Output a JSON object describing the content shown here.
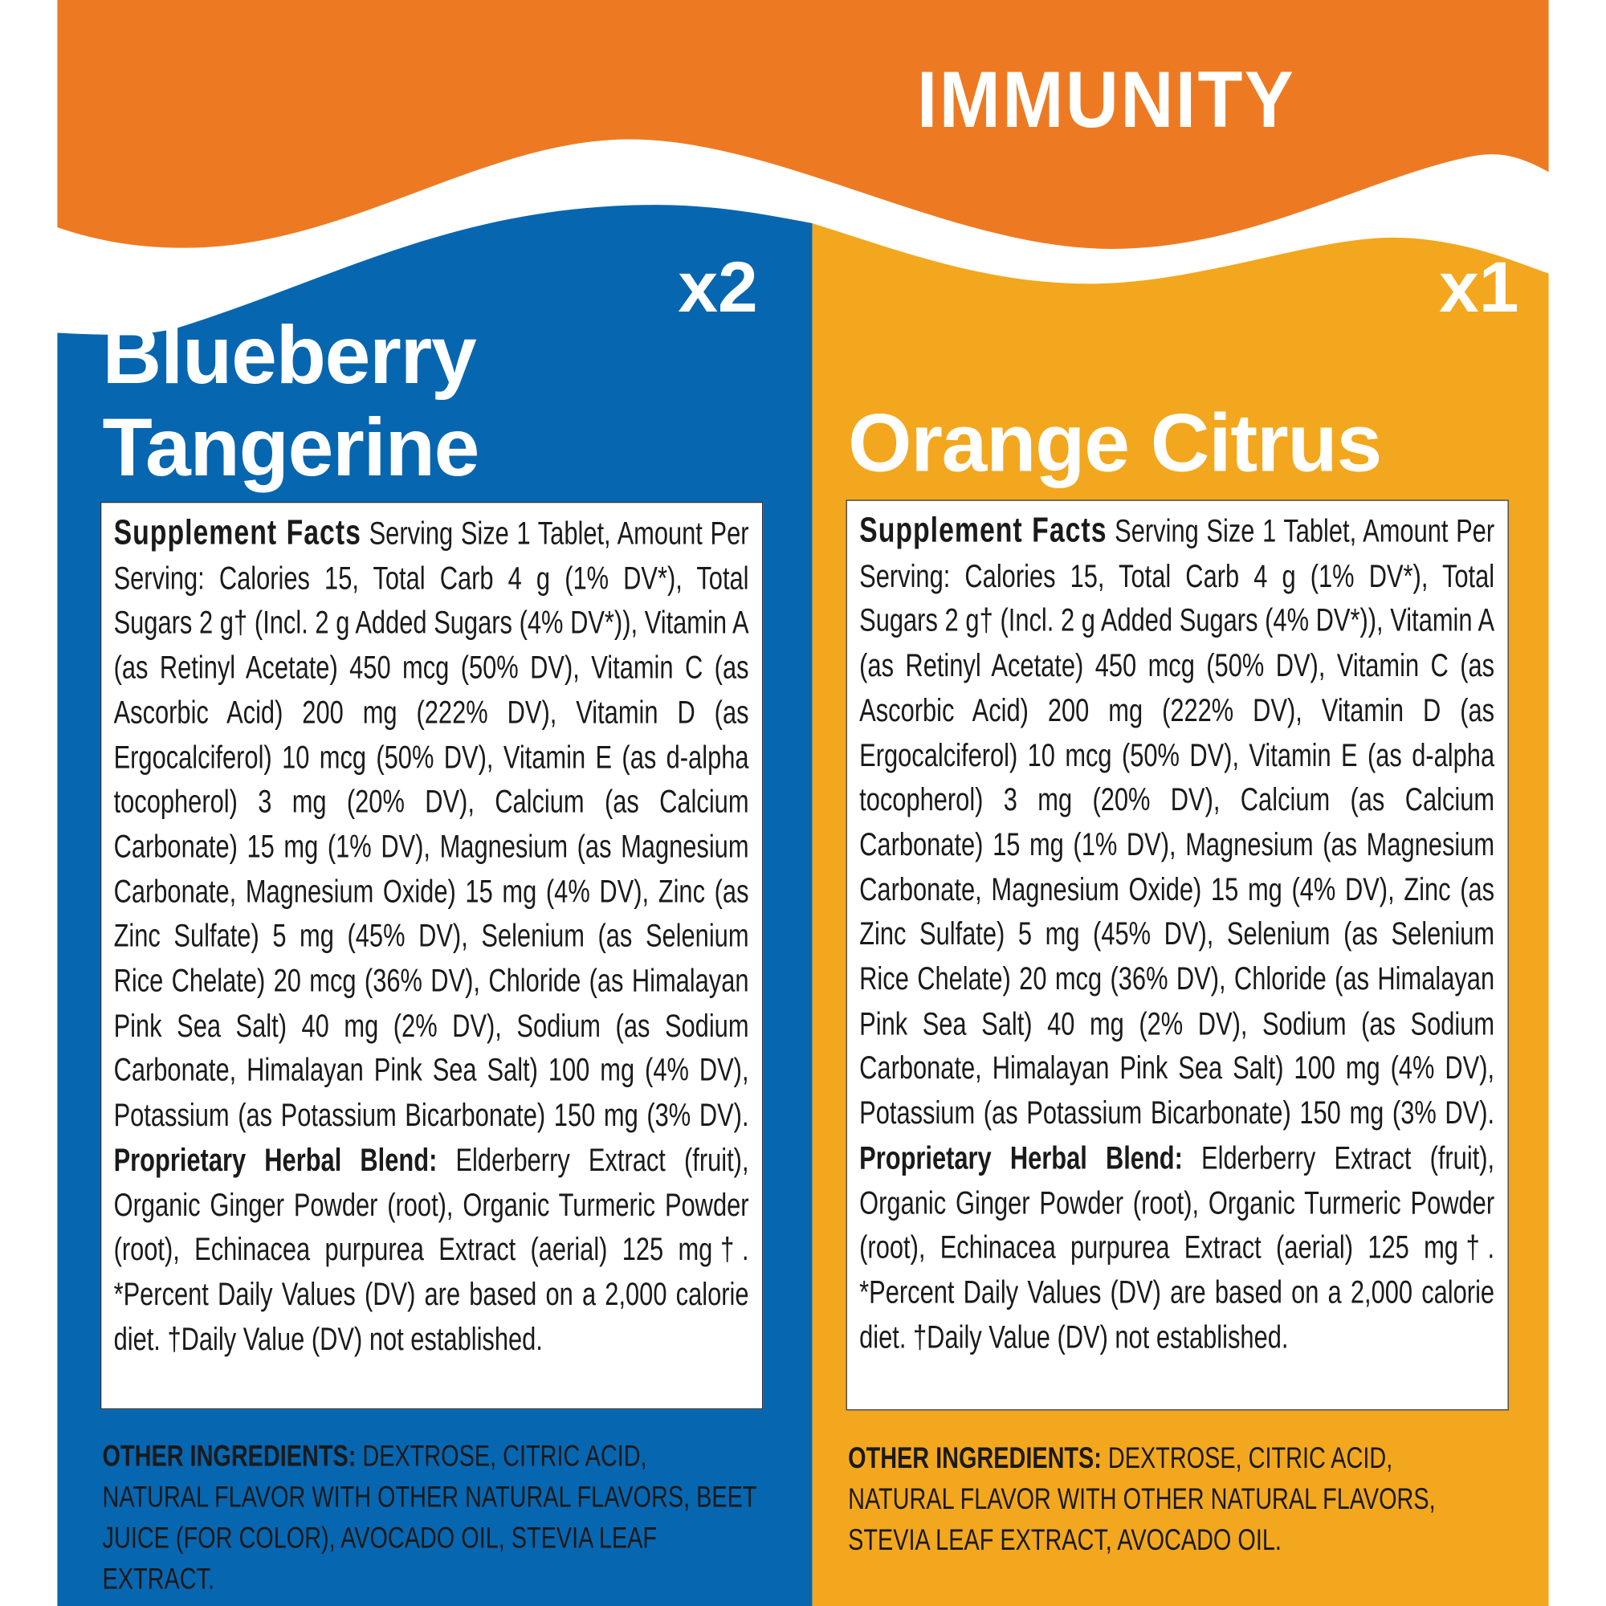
{
  "header": {
    "title": "IMMUNITY",
    "color": "#ED7A22"
  },
  "panels": [
    {
      "color": "#0766B0",
      "quantity": "x2",
      "flavor_line1": "Blueberry",
      "flavor_line2": "Tangerine",
      "facts_heading": "Supplement Facts",
      "facts_text": "Serving Size 1 Tablet, Amount Per Serving: Calories 15, Total Carb 4 g (1% DV*), Total Sugars 2 g† (Incl. 2 g Added Sugars (4% DV*)), Vitamin A (as Retinyl Acetate) 450 mcg (50% DV), Vitamin C (as Ascorbic Acid) 200 mg (222% DV), Vitamin D (as Ergocalciferol) 10 mcg (50% DV), Vitamin E (as d-alpha tocopherol) 3 mg (20% DV), Calcium (as Calcium Carbonate) 15 mg (1% DV), Magnesium (as Magnesium Carbonate, Magnesium Oxide) 15 mg (4% DV), Zinc (as Zinc Sulfate) 5 mg (45% DV), Selenium (as Selenium Rice Chelate) 20 mcg (36% DV), Chloride (as Himalayan Pink Sea Salt) 40 mg (2% DV), Sodium (as Sodium Carbonate, Himalayan Pink Sea Salt) 100 mg (4% DV), Potassium (as Potassium Bicarbonate) 150 mg (3% DV).",
      "blend_heading": "Proprietary Herbal Blend:",
      "blend_text": "Elderberry Extract (fruit), Organic Ginger Powder (root), Organic Turmeric Powder (root), Echinacea purpurea Extract (aerial) 125 mg†. *Percent Daily Values (DV) are based on a 2,000 calorie diet. †Daily Value (DV) not established.",
      "other_heading": "OTHER INGREDIENTS:",
      "other_text": "DEXTROSE, CITRIC ACID, NATURAL FLAVOR WITH OTHER NATURAL FLAVORS, BEET JUICE (FOR COLOR), AVOCADO OIL, STEVIA LEAF EXTRACT."
    },
    {
      "color": "#F3A71E",
      "quantity": "x1",
      "flavor_line1": "Orange Citrus",
      "facts_heading": "Supplement Facts",
      "facts_text": "Serving Size 1 Tablet, Amount Per Serving: Calories 15, Total Carb 4 g (1% DV*), Total Sugars 2 g† (Incl. 2 g Added Sugars (4% DV*)), Vitamin A (as Retinyl Acetate) 450 mcg (50% DV), Vitamin C (as Ascorbic Acid) 200 mg (222% DV), Vitamin D (as Ergocalciferol) 10 mcg (50% DV), Vitamin E (as d-alpha tocopherol) 3 mg (20% DV), Calcium (as Calcium Carbonate) 15 mg (1% DV), Magnesium (as Magnesium Carbonate, Magnesium Oxide) 15 mg (4% DV), Zinc (as Zinc Sulfate) 5 mg (45% DV), Selenium (as Selenium Rice Chelate) 20 mcg (36% DV), Chloride (as Himalayan Pink Sea Salt) 40 mg (2% DV), Sodium (as Sodium Carbonate, Himalayan Pink Sea Salt) 100 mg (4% DV), Potassium (as Potassium Bicarbonate) 150 mg (3% DV).",
      "blend_heading": "Proprietary Herbal Blend:",
      "blend_text": "Elderberry Extract (fruit), Organic Ginger Powder (root), Organic Turmeric Powder (root), Echinacea purpurea Extract (aerial) 125 mg†. *Percent Daily Values (DV) are based on a 2,000 calorie diet. †Daily Value (DV) not established.",
      "other_heading": "OTHER INGREDIENTS:",
      "other_text": "DEXTROSE, CITRIC ACID, NATURAL FLAVOR WITH OTHER NATURAL FLAVORS, STEVIA LEAF EXTRACT, AVOCADO OIL."
    }
  ]
}
